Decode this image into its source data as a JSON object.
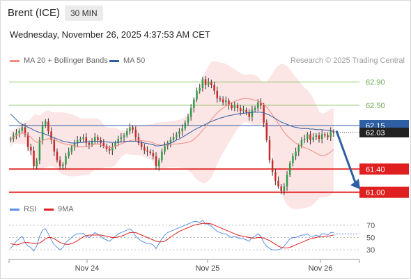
{
  "header": {
    "instrument": "Brent (ICE)",
    "timeframe": "30 MIN",
    "datetime": "Wednesday, November 26, 2025 4:37:53 AM CET"
  },
  "legend": {
    "bollinger": {
      "label": "MA 20 + Bollinger Bands",
      "color": "#f28b82"
    },
    "ma50": {
      "label": "MA 50",
      "color": "#2e5fa3"
    },
    "credit": "Research © 2025 Trading Central"
  },
  "rsi_legend": {
    "rsi": {
      "label": "RSI",
      "color": "#5b8ee6"
    },
    "ma9": {
      "label": "9MA",
      "color": "#e02020"
    }
  },
  "chart_data": {
    "type": "candlestick",
    "x_ticks": [
      "Nov 24",
      "Nov 25",
      "Nov 26"
    ],
    "ylim": [
      60.9,
      63.1
    ],
    "price_levels": [
      {
        "value": 62.9,
        "label": "62.90",
        "kind": "resistance",
        "color": "#8dc36a"
      },
      {
        "value": 62.5,
        "label": "62.50",
        "kind": "resistance",
        "color": "#8dc36a"
      },
      {
        "value": 62.15,
        "label": "62.15",
        "kind": "pivot",
        "color": "#2e5fa3"
      },
      {
        "value": 61.4,
        "label": "61.40",
        "kind": "support",
        "color": "#e02020"
      },
      {
        "value": 61.0,
        "label": "61.00",
        "kind": "support",
        "color": "#e02020"
      }
    ],
    "last_price": {
      "value": 62.03,
      "label": "62.03"
    },
    "forecast_arrow": {
      "from": 62.06,
      "to": 61.05
    },
    "close": [
      61.92,
      61.98,
      62.02,
      62.06,
      62.12,
      62.0,
      61.78,
      61.72,
      61.45,
      61.55,
      61.9,
      62.15,
      62.22,
      62.05,
      61.9,
      61.7,
      61.55,
      61.45,
      61.48,
      61.62,
      61.7,
      61.78,
      61.85,
      61.9,
      61.92,
      61.95,
      61.85,
      61.82,
      61.88,
      61.95,
      61.9,
      61.85,
      61.8,
      61.75,
      61.72,
      61.78,
      61.85,
      61.92,
      61.95,
      61.98,
      62.05,
      62.12,
      62.08,
      61.95,
      61.85,
      61.78,
      61.72,
      61.7,
      61.68,
      61.62,
      61.45,
      61.55,
      61.7,
      61.8,
      61.85,
      61.9,
      61.95,
      62.0,
      62.05,
      62.1,
      62.2,
      62.3,
      62.45,
      62.6,
      62.75,
      62.8,
      62.95,
      62.85,
      62.9,
      62.85,
      62.75,
      62.62,
      62.6,
      62.55,
      62.58,
      62.5,
      62.45,
      62.5,
      62.45,
      62.4,
      62.42,
      62.38,
      62.3,
      62.42,
      62.45,
      62.55,
      62.5,
      62.2,
      61.9,
      61.55,
      61.35,
      61.2,
      61.1,
      61.02,
      61.1,
      61.3,
      61.5,
      61.62,
      61.7,
      61.8,
      61.9,
      61.92,
      62.0,
      61.9,
      61.95,
      61.98,
      61.92,
      62.0,
      61.98,
      61.95,
      62.05,
      62.03
    ],
    "ma50": [
      62.35,
      62.3,
      62.25,
      62.2,
      62.17,
      62.15,
      62.12,
      62.1,
      62.07,
      62.05,
      62.03,
      62.02,
      62.0,
      61.98,
      61.96,
      61.94,
      61.92,
      61.9,
      61.88,
      61.87,
      61.86,
      61.85,
      61.85,
      61.85,
      61.86,
      61.86,
      61.87,
      61.87,
      61.88,
      61.88,
      61.88,
      61.88,
      61.87,
      61.87,
      61.86,
      61.86,
      61.86,
      61.86,
      61.87,
      61.87,
      61.88,
      61.88,
      61.88,
      61.88,
      61.87,
      61.86,
      61.85,
      61.84,
      61.83,
      61.82,
      61.8,
      61.8,
      61.81,
      61.82,
      61.83,
      61.85,
      61.87,
      61.9,
      61.92,
      61.95,
      61.98,
      62.01,
      62.04,
      62.07,
      62.1,
      62.12,
      62.15,
      62.17,
      62.2,
      62.22,
      62.24,
      62.26,
      62.28,
      62.29,
      62.31,
      62.32,
      62.33,
      62.34,
      62.35,
      62.36,
      62.36,
      62.37,
      62.37,
      62.38,
      62.38,
      62.38,
      62.38,
      62.37,
      62.35,
      62.33,
      62.3,
      62.27,
      62.24,
      62.21,
      62.19,
      62.17,
      62.15,
      62.13,
      62.12,
      62.11,
      62.1,
      62.1,
      62.1,
      62.09,
      62.09,
      62.08,
      62.08,
      62.08,
      62.07,
      62.07,
      62.06,
      62.05
    ]
  },
  "rsi_chart": {
    "ticks": [
      "70",
      "50",
      "30"
    ],
    "rsi": [
      32,
      38,
      44,
      48,
      52,
      42,
      36,
      34,
      28,
      36,
      52,
      62,
      64,
      56,
      46,
      38,
      34,
      30,
      34,
      42,
      46,
      50,
      54,
      56,
      56,
      57,
      52,
      50,
      54,
      58,
      55,
      52,
      48,
      46,
      44,
      48,
      52,
      56,
      58,
      60,
      62,
      64,
      60,
      52,
      48,
      44,
      42,
      40,
      40,
      38,
      32,
      40,
      48,
      54,
      58,
      60,
      62,
      64,
      66,
      68,
      70,
      72,
      74,
      76,
      76,
      74,
      78,
      72,
      72,
      68,
      64,
      60,
      58,
      56,
      56,
      52,
      50,
      52,
      50,
      48,
      48,
      46,
      44,
      50,
      52,
      56,
      52,
      42,
      36,
      32,
      30,
      30,
      30,
      32,
      36,
      42,
      48,
      50,
      50,
      52,
      54,
      54,
      56,
      52,
      52,
      54,
      52,
      56,
      56,
      54,
      58,
      58
    ],
    "ma9": [
      40,
      39,
      38,
      39,
      41,
      42,
      42,
      41,
      40,
      40,
      41,
      44,
      48,
      50,
      50,
      48,
      45,
      42,
      40,
      39,
      39,
      40,
      42,
      45,
      48,
      51,
      53,
      54,
      54,
      54,
      54,
      54,
      53,
      52,
      51,
      50,
      50,
      51,
      52,
      54,
      56,
      58,
      58,
      58,
      56,
      54,
      52,
      50,
      48,
      46,
      44,
      43,
      43,
      44,
      47,
      51,
      54,
      57,
      60,
      62,
      64,
      66,
      68,
      70,
      71,
      72,
      73,
      73,
      73,
      72,
      70,
      68,
      66,
      64,
      62,
      60,
      58,
      56,
      54,
      53,
      52,
      51,
      50,
      49,
      49,
      50,
      50,
      49,
      47,
      45,
      42,
      39,
      36,
      34,
      33,
      33,
      34,
      36,
      38,
      40,
      42,
      44,
      46,
      48,
      49,
      50,
      51,
      51,
      52,
      52,
      53,
      54
    ]
  }
}
